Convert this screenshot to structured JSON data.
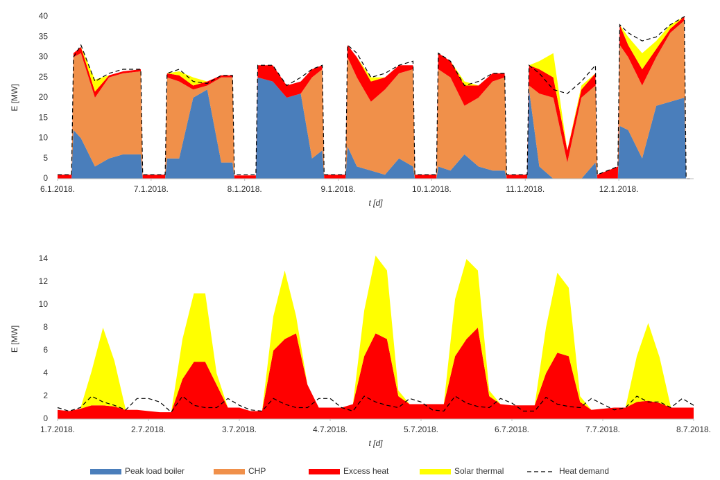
{
  "chart_data": [
    {
      "type": "area",
      "stacked": true,
      "grid": false,
      "x_label": "t [d]",
      "y_label": "E [MW]",
      "x": [
        0,
        0.15,
        0.17,
        0.25,
        0.4,
        0.55,
        0.7,
        0.89,
        0.91,
        1.15,
        1.17,
        1.3,
        1.45,
        1.6,
        1.75,
        1.87,
        1.89,
        2.12,
        2.14,
        2.3,
        2.45,
        2.6,
        2.72,
        2.83,
        2.85,
        3.08,
        3.1,
        3.2,
        3.35,
        3.5,
        3.65,
        3.8,
        3.82,
        4.05,
        4.07,
        4.2,
        4.35,
        4.5,
        4.65,
        4.78,
        4.8,
        5.02,
        5.04,
        5.15,
        5.3,
        5.45,
        5.6,
        5.75,
        5.77,
        5.99,
        6.01,
        6.1,
        6.25,
        6.4,
        6.55,
        6.7,
        6.72,
        6.76
      ],
      "xlim": [
        0,
        6.8
      ],
      "xticks": [
        {
          "value": 0,
          "label": "6.1.2018."
        },
        {
          "value": 1,
          "label": "7.1.2018."
        },
        {
          "value": 2,
          "label": "8.1.2018."
        },
        {
          "value": 3,
          "label": "9.1.2018."
        },
        {
          "value": 4,
          "label": "10.1.2018."
        },
        {
          "value": 5,
          "label": "11.1.2018."
        },
        {
          "value": 6,
          "label": "12.1.2018."
        }
      ],
      "ylim": [
        0,
        40
      ],
      "yticks": [
        0,
        5,
        10,
        15,
        20,
        25,
        30,
        35,
        40
      ],
      "series": [
        {
          "name": "Peak load boiler",
          "color": "#4a7ebb",
          "kind": "area",
          "values": [
            0,
            0,
            12,
            10,
            3,
            5,
            6,
            6,
            0,
            0,
            5,
            5,
            20,
            22,
            4,
            4,
            0,
            0,
            25,
            24,
            20,
            21,
            5,
            7,
            0,
            0,
            8,
            3,
            2,
            1,
            5,
            3,
            0,
            0,
            3,
            2,
            6,
            3,
            2,
            2,
            0,
            0,
            22,
            3,
            0,
            0,
            0,
            4,
            0,
            0,
            13,
            12,
            5,
            18,
            19,
            20,
            0,
            0
          ]
        },
        {
          "name": "CHP",
          "color": "#f0904a",
          "kind": "area",
          "values": [
            0,
            0,
            18,
            21,
            17,
            20,
            20,
            20.5,
            0,
            0,
            20,
            19,
            2,
            1,
            21,
            21,
            0,
            0,
            0,
            0,
            0,
            0,
            20,
            20,
            0,
            0,
            22,
            22,
            17,
            21,
            21,
            24,
            0,
            0,
            24,
            23,
            12,
            17,
            22,
            23,
            0,
            0,
            1,
            18,
            20,
            4,
            20,
            19,
            0,
            0,
            20,
            18,
            18,
            12,
            17,
            19,
            0,
            0
          ]
        },
        {
          "name": "Excess heat",
          "color": "#ff0000",
          "kind": "area",
          "values": [
            1,
            1,
            1,
            1.5,
            1.5,
            0.5,
            0.5,
            0.5,
            1,
            1,
            1,
            1.5,
            1,
            1,
            0.5,
            0.5,
            0.8,
            0.8,
            3,
            4,
            3,
            3,
            2,
            1,
            1,
            1,
            3,
            5,
            5,
            3,
            2,
            1,
            1,
            1,
            4,
            4,
            5,
            3,
            2,
            1,
            1,
            1,
            5,
            6,
            5,
            3,
            2,
            3,
            1,
            3,
            5,
            3,
            4,
            2,
            1,
            1,
            0,
            0
          ]
        },
        {
          "name": "Solar thermal",
          "color": "#ffff00",
          "kind": "area",
          "values": [
            0,
            0,
            0,
            0,
            3,
            0,
            0,
            0,
            0,
            0,
            0,
            1,
            2,
            0,
            0,
            0,
            0,
            0,
            0,
            0,
            0,
            0,
            0,
            0,
            0,
            0,
            0,
            0,
            1,
            0,
            0,
            0,
            0,
            0,
            0,
            0,
            1,
            0,
            0,
            0,
            0,
            0,
            0,
            2,
            6,
            0,
            1,
            0,
            0,
            0,
            0,
            2,
            4,
            2,
            1,
            0,
            0,
            0
          ]
        },
        {
          "name": "Heat demand",
          "color": "#000000",
          "kind": "line",
          "line_style": "dashed",
          "values": [
            1,
            1,
            30,
            33,
            24,
            26,
            27,
            27,
            1,
            1,
            26,
            27,
            24,
            23.5,
            25.5,
            25.5,
            1,
            1,
            28,
            28,
            23,
            25,
            27,
            28,
            1,
            1,
            33,
            31,
            25,
            26,
            28,
            29,
            1,
            1,
            31,
            29,
            23,
            24,
            26,
            26,
            1,
            1,
            28,
            26,
            22,
            21,
            24,
            28,
            1,
            3,
            38,
            36,
            34,
            35,
            38,
            40,
            0,
            0
          ]
        }
      ]
    },
    {
      "type": "area",
      "stacked": true,
      "grid": false,
      "x_label": "t [d]",
      "y_label": "E [MW]",
      "x": [
        0,
        0.125,
        0.25,
        0.375,
        0.5,
        0.625,
        0.75,
        0.875,
        1,
        1.125,
        1.25,
        1.375,
        1.5,
        1.625,
        1.75,
        1.875,
        2,
        2.125,
        2.25,
        2.375,
        2.5,
        2.625,
        2.75,
        2.875,
        3,
        3.125,
        3.25,
        3.375,
        3.5,
        3.625,
        3.75,
        3.875,
        4,
        4.125,
        4.25,
        4.375,
        4.5,
        4.625,
        4.75,
        4.875,
        5,
        5.125,
        5.25,
        5.375,
        5.5,
        5.625,
        5.75,
        5.875,
        6,
        6.125,
        6.25,
        6.375,
        6.5,
        6.625,
        6.75,
        6.875,
        7
      ],
      "xlim": [
        0,
        7
      ],
      "xticks": [
        {
          "value": 0,
          "label": "1.7.2018."
        },
        {
          "value": 1,
          "label": "2.7.2018."
        },
        {
          "value": 2,
          "label": "3.7.2018."
        },
        {
          "value": 3,
          "label": "4.7.2018."
        },
        {
          "value": 4,
          "label": "5.7.2018."
        },
        {
          "value": 5,
          "label": "6.7.2018."
        },
        {
          "value": 6,
          "label": "7.7.2018."
        },
        {
          "value": 7,
          "label": "8.7.2018."
        }
      ],
      "ylim": [
        0,
        14
      ],
      "yticks": [
        0,
        2,
        4,
        6,
        8,
        10,
        12,
        14
      ],
      "series": [
        {
          "color": "#ff0000",
          "kind": "area",
          "values": [
            0.8,
            0.7,
            0.9,
            1.2,
            1.2,
            1.1,
            0.8,
            0.8,
            0.7,
            0.6,
            0.6,
            3.5,
            5,
            5,
            3,
            1,
            1,
            0.7,
            0.7,
            6,
            7,
            7.5,
            3,
            1,
            1,
            1,
            1.3,
            5.5,
            7.5,
            7,
            2,
            1.3,
            1.3,
            1.3,
            1.3,
            5.5,
            7,
            8,
            2,
            1.3,
            1.2,
            1.2,
            1.2,
            4,
            5.8,
            5.5,
            1.5,
            0.8,
            0.9,
            1,
            1,
            1.5,
            1.6,
            1.4,
            1,
            1,
            1
          ]
        },
        {
          "color": "#ffff00",
          "kind": "area",
          "values": [
            0,
            0,
            0,
            3,
            6.8,
            4,
            0,
            0,
            0,
            0,
            0,
            3.5,
            6,
            6,
            1,
            0,
            0,
            0,
            0,
            3,
            6,
            1.5,
            0,
            0,
            0,
            0,
            0,
            4,
            6.8,
            6,
            0.5,
            0,
            0,
            0,
            0,
            5,
            7,
            5,
            0.5,
            0,
            0,
            0,
            0,
            4,
            7,
            6,
            0.5,
            0,
            0,
            0,
            0,
            4,
            6.8,
            4,
            0,
            0,
            0
          ]
        },
        {
          "color": "#000000",
          "kind": "line",
          "line_style": "dashed",
          "values": [
            1,
            0.7,
            1,
            2,
            1.5,
            1.2,
            0.8,
            1.8,
            1.8,
            1.5,
            0.6,
            2,
            1.2,
            1,
            1,
            1.8,
            1.2,
            0.8,
            0.7,
            1.8,
            1.3,
            1,
            1,
            1.8,
            1.8,
            1,
            0.7,
            2,
            1.5,
            1.2,
            1,
            1.8,
            1.5,
            0.8,
            0.7,
            2,
            1.4,
            1.1,
            1,
            1.8,
            1.4,
            0.7,
            0.7,
            1.9,
            1.3,
            1.1,
            1,
            1.8,
            1.3,
            0.8,
            1,
            2,
            1.5,
            1.5,
            1,
            1.8,
            1.2
          ]
        }
      ]
    }
  ]
}
